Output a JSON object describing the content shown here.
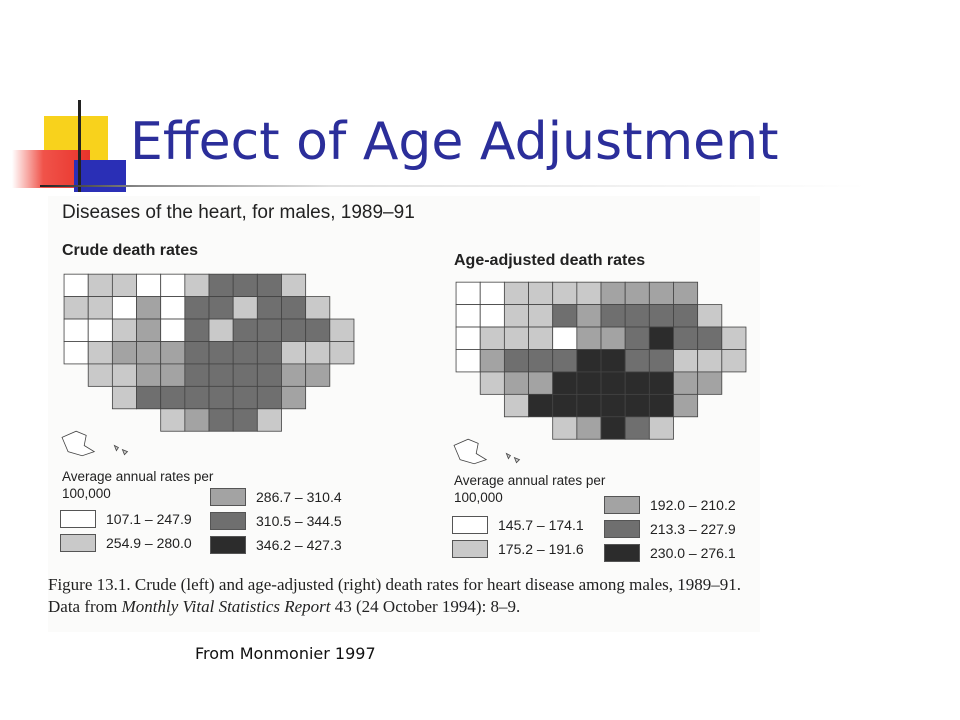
{
  "slide": {
    "title": "Effect of Age Adjustment",
    "credit": "From Monmonier 1997"
  },
  "figure": {
    "title": "Diseases of the heart, for males, 1989–91",
    "caption_parts": [
      "Figure 13.1. Crude (left) and age-adjusted (right) death rates for heart disease among males, 1989–91. Data from ",
      "Monthly Vital Statistics Report",
      " 43 (24 October 1994): 8–9."
    ]
  },
  "maps": [
    {
      "subtitle": "Crude death rates",
      "legend_title": "Average annual rates per 100,000",
      "classes": [
        {
          "range": "107.1 – 247.9",
          "color": "#ffffff"
        },
        {
          "range": "254.9 – 280.0",
          "color": "#c9c9c9"
        },
        {
          "range": "286.7 – 310.4",
          "color": "#a3a3a3"
        },
        {
          "range": "310.5 – 344.5",
          "color": "#6f6f6f"
        },
        {
          "range": "346.2 – 427.3",
          "color": "#2c2c2c"
        }
      ]
    },
    {
      "subtitle": "Age-adjusted death rates",
      "legend_title": "Average annual rates per 100,000",
      "classes": [
        {
          "range": "145.7 – 174.1",
          "color": "#ffffff"
        },
        {
          "range": "175.2 – 191.6",
          "color": "#c9c9c9"
        },
        {
          "range": "192.0 – 210.2",
          "color": "#a3a3a3"
        },
        {
          "range": "213.3 – 227.9",
          "color": "#6f6f6f"
        },
        {
          "range": "230.0 – 276.1",
          "color": "#2c2c2c"
        }
      ]
    }
  ],
  "colors": {
    "title": "#2b2e9a",
    "accent_yellow": "#f8d21c",
    "accent_blue": "#2a2fb6",
    "accent_red": "#e8332a"
  }
}
